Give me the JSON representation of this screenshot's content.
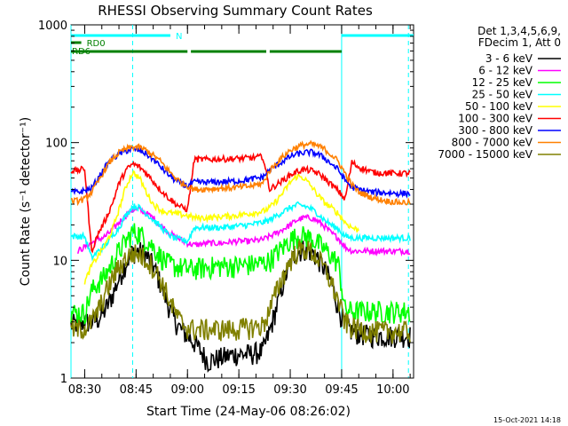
{
  "chart_data": {
    "type": "line",
    "title": "RHESSI Observing Summary Count Rates",
    "xlabel": "Start Time (24-May-06 08:26:02)",
    "ylabel": "Count Rate (s⁻¹ detector⁻¹)",
    "y_scale": "log",
    "ylim": [
      1,
      1000
    ],
    "xlim_minutes": [
      506,
      606
    ],
    "x_ticks": [
      {
        "label": "08:30",
        "value": 510
      },
      {
        "label": "08:45",
        "value": 525
      },
      {
        "label": "09:00",
        "value": 540
      },
      {
        "label": "09:15",
        "value": 555
      },
      {
        "label": "09:30",
        "value": 570
      },
      {
        "label": "09:45",
        "value": 585
      },
      {
        "label": "10:00",
        "value": 600
      }
    ],
    "y_ticks": [
      {
        "label": "1",
        "value": 1
      },
      {
        "label": "10",
        "value": 10
      },
      {
        "label": "100",
        "value": 100
      },
      {
        "label": "1000",
        "value": 1000
      }
    ],
    "legend_header": [
      "Det 1,3,4,5,6,9,",
      "FDecim 1, Att 0"
    ],
    "legend_position": "right",
    "footer_timestamp": "15-Oct-2021 14:18",
    "status_bars": [
      {
        "label": "N",
        "color": "#00ffff",
        "segments": [
          [
            506,
            535
          ],
          [
            585,
            606
          ]
        ]
      },
      {
        "label": "RD0",
        "color": "#008000",
        "segments": [
          [
            506,
            509
          ]
        ]
      },
      {
        "label": "RD6",
        "color": "#008000",
        "segments": [
          [
            506,
            511
          ],
          [
            511,
            540
          ],
          [
            541,
            563
          ],
          [
            564,
            585
          ]
        ]
      }
    ],
    "vertical_lines": [
      {
        "value": 506,
        "color": "#00ffff",
        "style": "solid"
      },
      {
        "value": 524,
        "color": "#00ffff",
        "style": "dashed"
      },
      {
        "value": 585,
        "color": "#00ffff",
        "style": "solid"
      },
      {
        "value": 604.5,
        "color": "#00ffff",
        "style": "dashed"
      }
    ],
    "series": [
      {
        "name": "3 - 6 keV",
        "color": "#000000",
        "x": [
          506,
          507,
          508,
          510,
          512,
          514,
          516,
          518,
          520,
          522,
          524,
          526,
          528,
          530,
          532,
          534,
          536,
          538,
          540,
          542,
          546,
          550,
          554,
          558,
          562,
          564,
          566,
          568,
          570,
          572,
          574,
          576,
          578,
          580,
          582,
          584,
          586,
          588,
          590,
          594,
          598,
          602,
          605
        ],
        "y": [
          2.8,
          2.9,
          2.9,
          3.0,
          3.0,
          3.2,
          3.8,
          5.0,
          7.0,
          9.5,
          11.8,
          12.0,
          11.0,
          9.0,
          6.5,
          4.5,
          3.2,
          2.6,
          2.3,
          2.0,
          1.4,
          1.5,
          1.6,
          1.6,
          1.7,
          2.5,
          4.0,
          6.5,
          9.5,
          11.8,
          12.5,
          12.0,
          10.5,
          8.5,
          6.5,
          4.0,
          2.8,
          2.5,
          2.4,
          2.3,
          2.3,
          2.3,
          2.3
        ]
      },
      {
        "name": "6 - 12 keV",
        "color": "#ff00ff",
        "x": [
          508,
          510,
          512,
          514,
          516,
          518,
          520,
          522,
          524,
          526,
          528,
          530,
          532,
          534,
          536,
          538,
          540,
          542,
          546,
          550,
          554,
          558,
          562,
          564,
          566,
          568,
          570,
          572,
          574,
          576,
          578,
          580,
          582,
          584,
          586,
          588,
          590,
          594,
          598,
          602,
          605
        ],
        "y": [
          12,
          13,
          14,
          15,
          16,
          18,
          21,
          24,
          27,
          27,
          25,
          23,
          20,
          18,
          16,
          15,
          14,
          13.5,
          14,
          14,
          14.5,
          14.5,
          15,
          16,
          17,
          18.5,
          20,
          22,
          23,
          23,
          21.5,
          19.5,
          17,
          15.5,
          13,
          12,
          12,
          12,
          12,
          12,
          12
        ]
      },
      {
        "name": "12 - 25 keV",
        "color": "#00ff00",
        "x": [
          506,
          508,
          510,
          512,
          514,
          516,
          518,
          520,
          522,
          524,
          526,
          528,
          530,
          532,
          534,
          536,
          538,
          540,
          542,
          546,
          550,
          554,
          558,
          562,
          564,
          566,
          568,
          570,
          572,
          574,
          576,
          578,
          580,
          582,
          584,
          586,
          588,
          590,
          594,
          598,
          602,
          605
        ],
        "y": [
          3.6,
          3.6,
          3.6,
          5.5,
          6.5,
          7.5,
          9.5,
          12,
          14.5,
          17.5,
          17,
          15,
          13,
          11,
          9.5,
          9,
          8.7,
          8.5,
          8.5,
          8.8,
          9.0,
          9.0,
          9.2,
          9.5,
          10,
          11.5,
          13,
          15,
          16,
          16.2,
          15.5,
          14,
          12.5,
          11,
          9.5,
          3.8,
          3.7,
          3.7,
          3.7,
          3.7,
          3.7,
          3.7
        ]
      },
      {
        "name": "25 - 50 keV",
        "color": "#00ffff",
        "x": [
          506,
          508,
          510,
          512,
          514,
          516,
          518,
          520,
          522,
          524,
          526,
          528,
          530,
          532,
          534,
          536,
          538,
          540,
          542,
          546,
          550,
          554,
          558,
          562,
          564,
          566,
          568,
          570,
          572,
          574,
          576,
          578,
          580,
          582,
          584,
          586,
          588,
          590,
          594,
          598,
          602,
          605
        ],
        "y": [
          16,
          16,
          16,
          10.5,
          12,
          13.5,
          16,
          19,
          24,
          29,
          28,
          25,
          22,
          19.5,
          17,
          15.5,
          15,
          14.5,
          19,
          19,
          19,
          19.5,
          20,
          21,
          22,
          24,
          26,
          28,
          29.5,
          29,
          27.5,
          25,
          22,
          20,
          18.5,
          16,
          15.5,
          15.5,
          15.5,
          15.5,
          15.5,
          15.5
        ]
      },
      {
        "name": "50 - 100 keV",
        "color": "#ffff00",
        "x": [
          510,
          512,
          514,
          516,
          518,
          520,
          522,
          524,
          526,
          528,
          530,
          532,
          534,
          536,
          538,
          540,
          542,
          546,
          550,
          554,
          558,
          562,
          564,
          566,
          568,
          570,
          572,
          574,
          576,
          578,
          580,
          582,
          584,
          586,
          588,
          590
        ],
        "y": [
          6.5,
          9,
          11,
          13.5,
          18,
          27,
          42,
          56,
          50,
          38,
          30,
          27,
          25.5,
          25,
          24.5,
          24,
          23,
          23,
          23.5,
          24,
          25,
          26,
          28,
          32,
          38,
          46,
          52,
          50,
          43,
          36,
          31,
          28,
          25,
          21,
          19,
          18
        ]
      },
      {
        "name": "100 - 300 keV",
        "color": "#ff0000",
        "x": [
          506,
          508,
          510,
          512,
          514,
          516,
          518,
          520,
          522,
          524,
          526,
          528,
          530,
          532,
          534,
          536,
          538,
          540,
          542,
          546,
          550,
          554,
          558,
          562,
          564,
          566,
          568,
          570,
          572,
          574,
          576,
          578,
          580,
          582,
          584,
          586,
          588,
          590,
          594,
          598,
          602,
          605
        ],
        "y": [
          58,
          58,
          60,
          12,
          17,
          22,
          30,
          45,
          58,
          66,
          62,
          55,
          47,
          40,
          35,
          31,
          28.5,
          27,
          72,
          72,
          72.5,
          73,
          74,
          76,
          40,
          44,
          48,
          53,
          57,
          59,
          58,
          55,
          50,
          44,
          39,
          33,
          68,
          62,
          56,
          55,
          55,
          55
        ]
      },
      {
        "name": "300 - 800 keV",
        "color": "#0000ff",
        "x": [
          506,
          508,
          510,
          512,
          514,
          516,
          518,
          520,
          522,
          524,
          526,
          528,
          530,
          532,
          534,
          536,
          538,
          540,
          542,
          546,
          550,
          554,
          558,
          562,
          564,
          566,
          568,
          570,
          572,
          574,
          576,
          578,
          580,
          582,
          584,
          586,
          588,
          590,
          594,
          598,
          602,
          605
        ],
        "y": [
          38,
          38,
          39,
          41,
          50,
          62,
          72,
          80,
          85,
          88,
          86,
          80,
          72,
          63,
          55,
          49,
          45,
          43,
          46,
          46,
          46.5,
          47,
          48.5,
          51,
          58,
          64,
          70,
          76,
          80,
          82,
          83,
          80,
          74,
          66,
          59,
          48,
          42,
          40,
          38,
          37.5,
          37,
          37
        ]
      },
      {
        "name": "800 - 7000 keV",
        "color": "#ff8000",
        "x": [
          506,
          508,
          510,
          512,
          514,
          516,
          518,
          520,
          522,
          524,
          526,
          528,
          530,
          532,
          534,
          536,
          538,
          540,
          542,
          546,
          550,
          554,
          558,
          562,
          564,
          566,
          568,
          570,
          572,
          574,
          576,
          578,
          580,
          582,
          584,
          586,
          588,
          590,
          594,
          598,
          602,
          605
        ],
        "y": [
          32,
          32,
          33,
          38,
          47,
          60,
          72,
          82,
          88,
          92,
          91,
          86,
          78,
          70,
          60,
          52,
          46,
          43,
          40,
          40.5,
          41,
          41.5,
          42.5,
          45,
          58,
          67,
          77,
          86,
          92,
          96,
          97,
          94,
          88,
          79,
          69,
          55,
          44,
          38,
          34,
          32,
          31,
          31
        ]
      },
      {
        "name": "7000 - 15000 keV",
        "color": "#808000",
        "x": [
          506,
          508,
          510,
          512,
          514,
          516,
          518,
          520,
          522,
          524,
          526,
          528,
          530,
          532,
          534,
          536,
          538,
          540,
          542,
          546,
          550,
          554,
          558,
          562,
          564,
          566,
          568,
          570,
          572,
          574,
          576,
          578,
          580,
          582,
          584,
          586,
          588,
          590,
          594,
          598,
          602,
          605
        ],
        "y": [
          2.6,
          2.6,
          2.7,
          3.0,
          3.8,
          5.2,
          7.0,
          8.8,
          10.5,
          11.5,
          11.3,
          10.2,
          8.8,
          7.0,
          5.2,
          3.8,
          3.0,
          2.7,
          2.6,
          2.6,
          2.6,
          2.6,
          2.7,
          2.8,
          3.8,
          5.5,
          7.5,
          10,
          12,
          12.5,
          12,
          10.5,
          8.5,
          6.5,
          4.5,
          3.0,
          2.7,
          2.6,
          2.5,
          2.5,
          2.5,
          2.5
        ]
      }
    ]
  }
}
